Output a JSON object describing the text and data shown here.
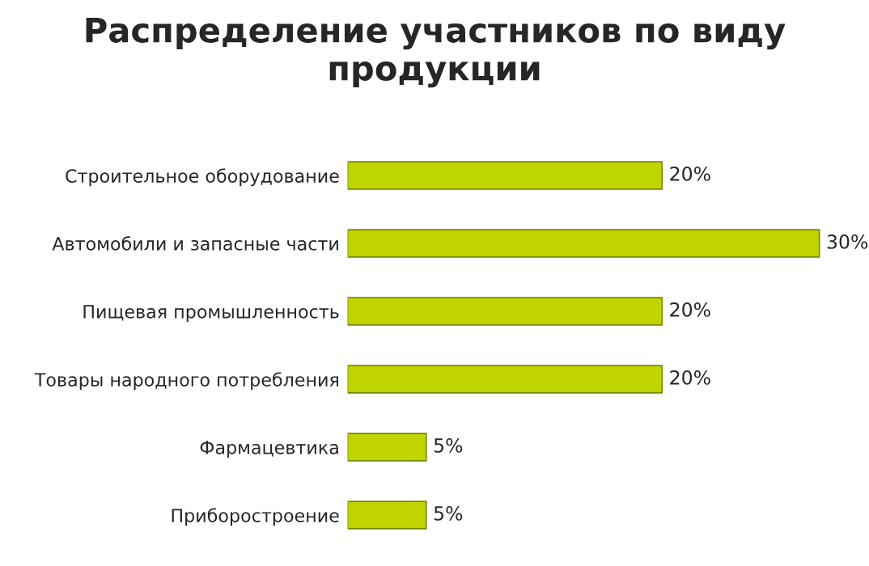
{
  "chart_data": {
    "type": "bar",
    "orientation": "horizontal",
    "title": "Распределение участников по виду продукции",
    "categories": [
      "Строительное оборудование",
      "Автомобили и запасные части",
      "Пищевая промышленность",
      "Товары народного потребления",
      "Фармацевтика",
      "Приборостроение"
    ],
    "values": [
      20,
      30,
      20,
      20,
      5,
      5
    ],
    "value_labels": [
      "20%",
      "30%",
      "20%",
      "20%",
      "5%",
      "5%"
    ],
    "color": "#c0d400",
    "tick_labels": "y",
    "grid": false,
    "legend": false
  }
}
